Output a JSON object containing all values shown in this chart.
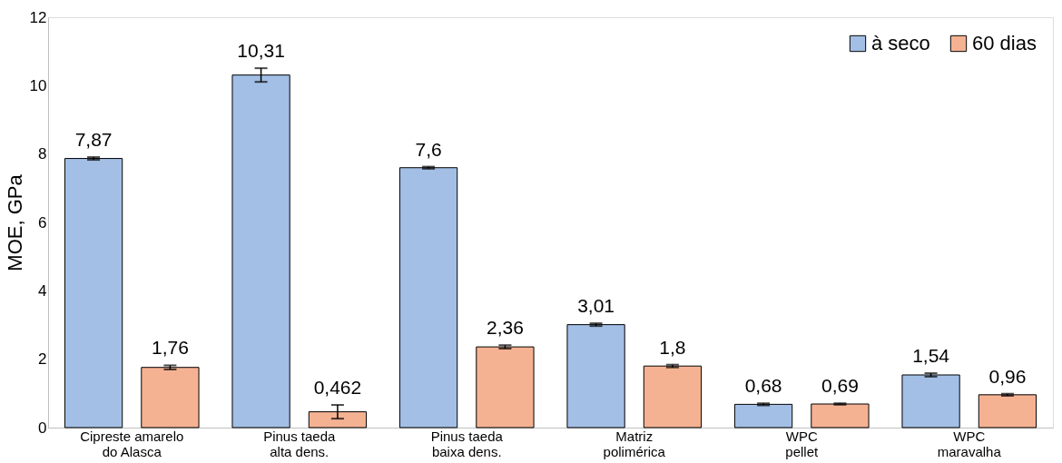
{
  "chart_data": {
    "type": "bar",
    "ylabel": "MOE, GPa",
    "categories": [
      "Cipreste amarelo\ndo Alasca",
      "Pinus taeda\nalta dens.",
      "Pinus taeda\nbaixa dens.",
      "Matriz\npolimérica",
      "WPC\npellet",
      "WPC\nmaravalha"
    ],
    "series": [
      {
        "name": "à seco",
        "color": "#a3bfe6",
        "values": [
          7.87,
          10.31,
          7.6,
          3.01,
          0.68,
          1.54
        ],
        "errors": [
          0.04,
          0.2,
          0.03,
          0.04,
          0.03,
          0.05
        ],
        "value_labels": [
          "7,87",
          "10,31",
          "7,6",
          "3,01",
          "0,68",
          "1,54"
        ]
      },
      {
        "name": "60 dias",
        "color": "#f5b293",
        "values": [
          1.76,
          0.462,
          2.36,
          1.8,
          0.69,
          0.96
        ],
        "errors": [
          0.06,
          0.2,
          0.05,
          0.04,
          0.02,
          0.03
        ],
        "value_labels": [
          "1,76",
          "0,462",
          "2,36",
          "1,8",
          "0,69",
          "0,96"
        ]
      }
    ],
    "ylim": [
      0,
      12
    ],
    "yticks": [
      0,
      2,
      4,
      6,
      8,
      10,
      12
    ],
    "grid": false,
    "legend": "top right"
  }
}
